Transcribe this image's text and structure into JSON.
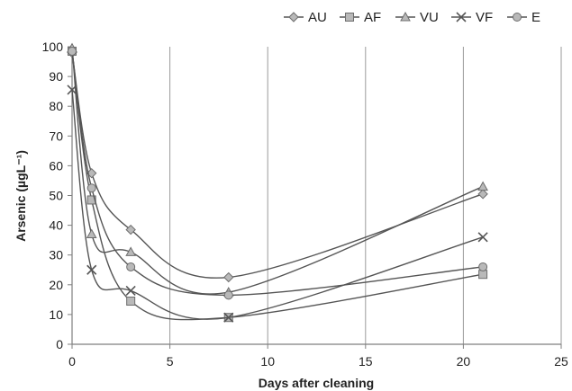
{
  "chart_data": {
    "type": "line",
    "title": "",
    "xlabel": "Days after cleaning",
    "ylabel": "Arsenic (µgL⁻¹)",
    "xlim": [
      0,
      25
    ],
    "ylim": [
      0,
      100
    ],
    "x_ticks": [
      0,
      5,
      10,
      15,
      20,
      25
    ],
    "y_ticks": [
      0,
      10,
      20,
      30,
      40,
      50,
      60,
      70,
      80,
      90,
      100
    ],
    "grid": "vertical",
    "legend_position": "top-right",
    "smooth_lines": true,
    "series": [
      {
        "name": "AU",
        "marker": "diamond",
        "color": "#555555",
        "points": [
          [
            0,
            98
          ],
          [
            1,
            57.5
          ],
          [
            3,
            38.5
          ],
          [
            8,
            22.5
          ],
          [
            21,
            50.5
          ]
        ]
      },
      {
        "name": "AF",
        "marker": "square",
        "color": "#555555",
        "points": [
          [
            0,
            98.5
          ],
          [
            1,
            48.5
          ],
          [
            3,
            14.5
          ],
          [
            8,
            9
          ],
          [
            21,
            23.5
          ]
        ]
      },
      {
        "name": "VU",
        "marker": "triangle",
        "color": "#555555",
        "points": [
          [
            0,
            99.5
          ],
          [
            1,
            37
          ],
          [
            3,
            31
          ],
          [
            8,
            17.5
          ],
          [
            21,
            53
          ]
        ]
      },
      {
        "name": "VF",
        "marker": "x",
        "color": "#555555",
        "points": [
          [
            0,
            85.5
          ],
          [
            1,
            25
          ],
          [
            3,
            18
          ],
          [
            8,
            9
          ],
          [
            21,
            36
          ]
        ]
      },
      {
        "name": "E",
        "marker": "circle",
        "color": "#555555",
        "points": [
          [
            0,
            98.5
          ],
          [
            1,
            52.5
          ],
          [
            3,
            26
          ],
          [
            8,
            16.5
          ],
          [
            21,
            26
          ]
        ]
      }
    ]
  }
}
